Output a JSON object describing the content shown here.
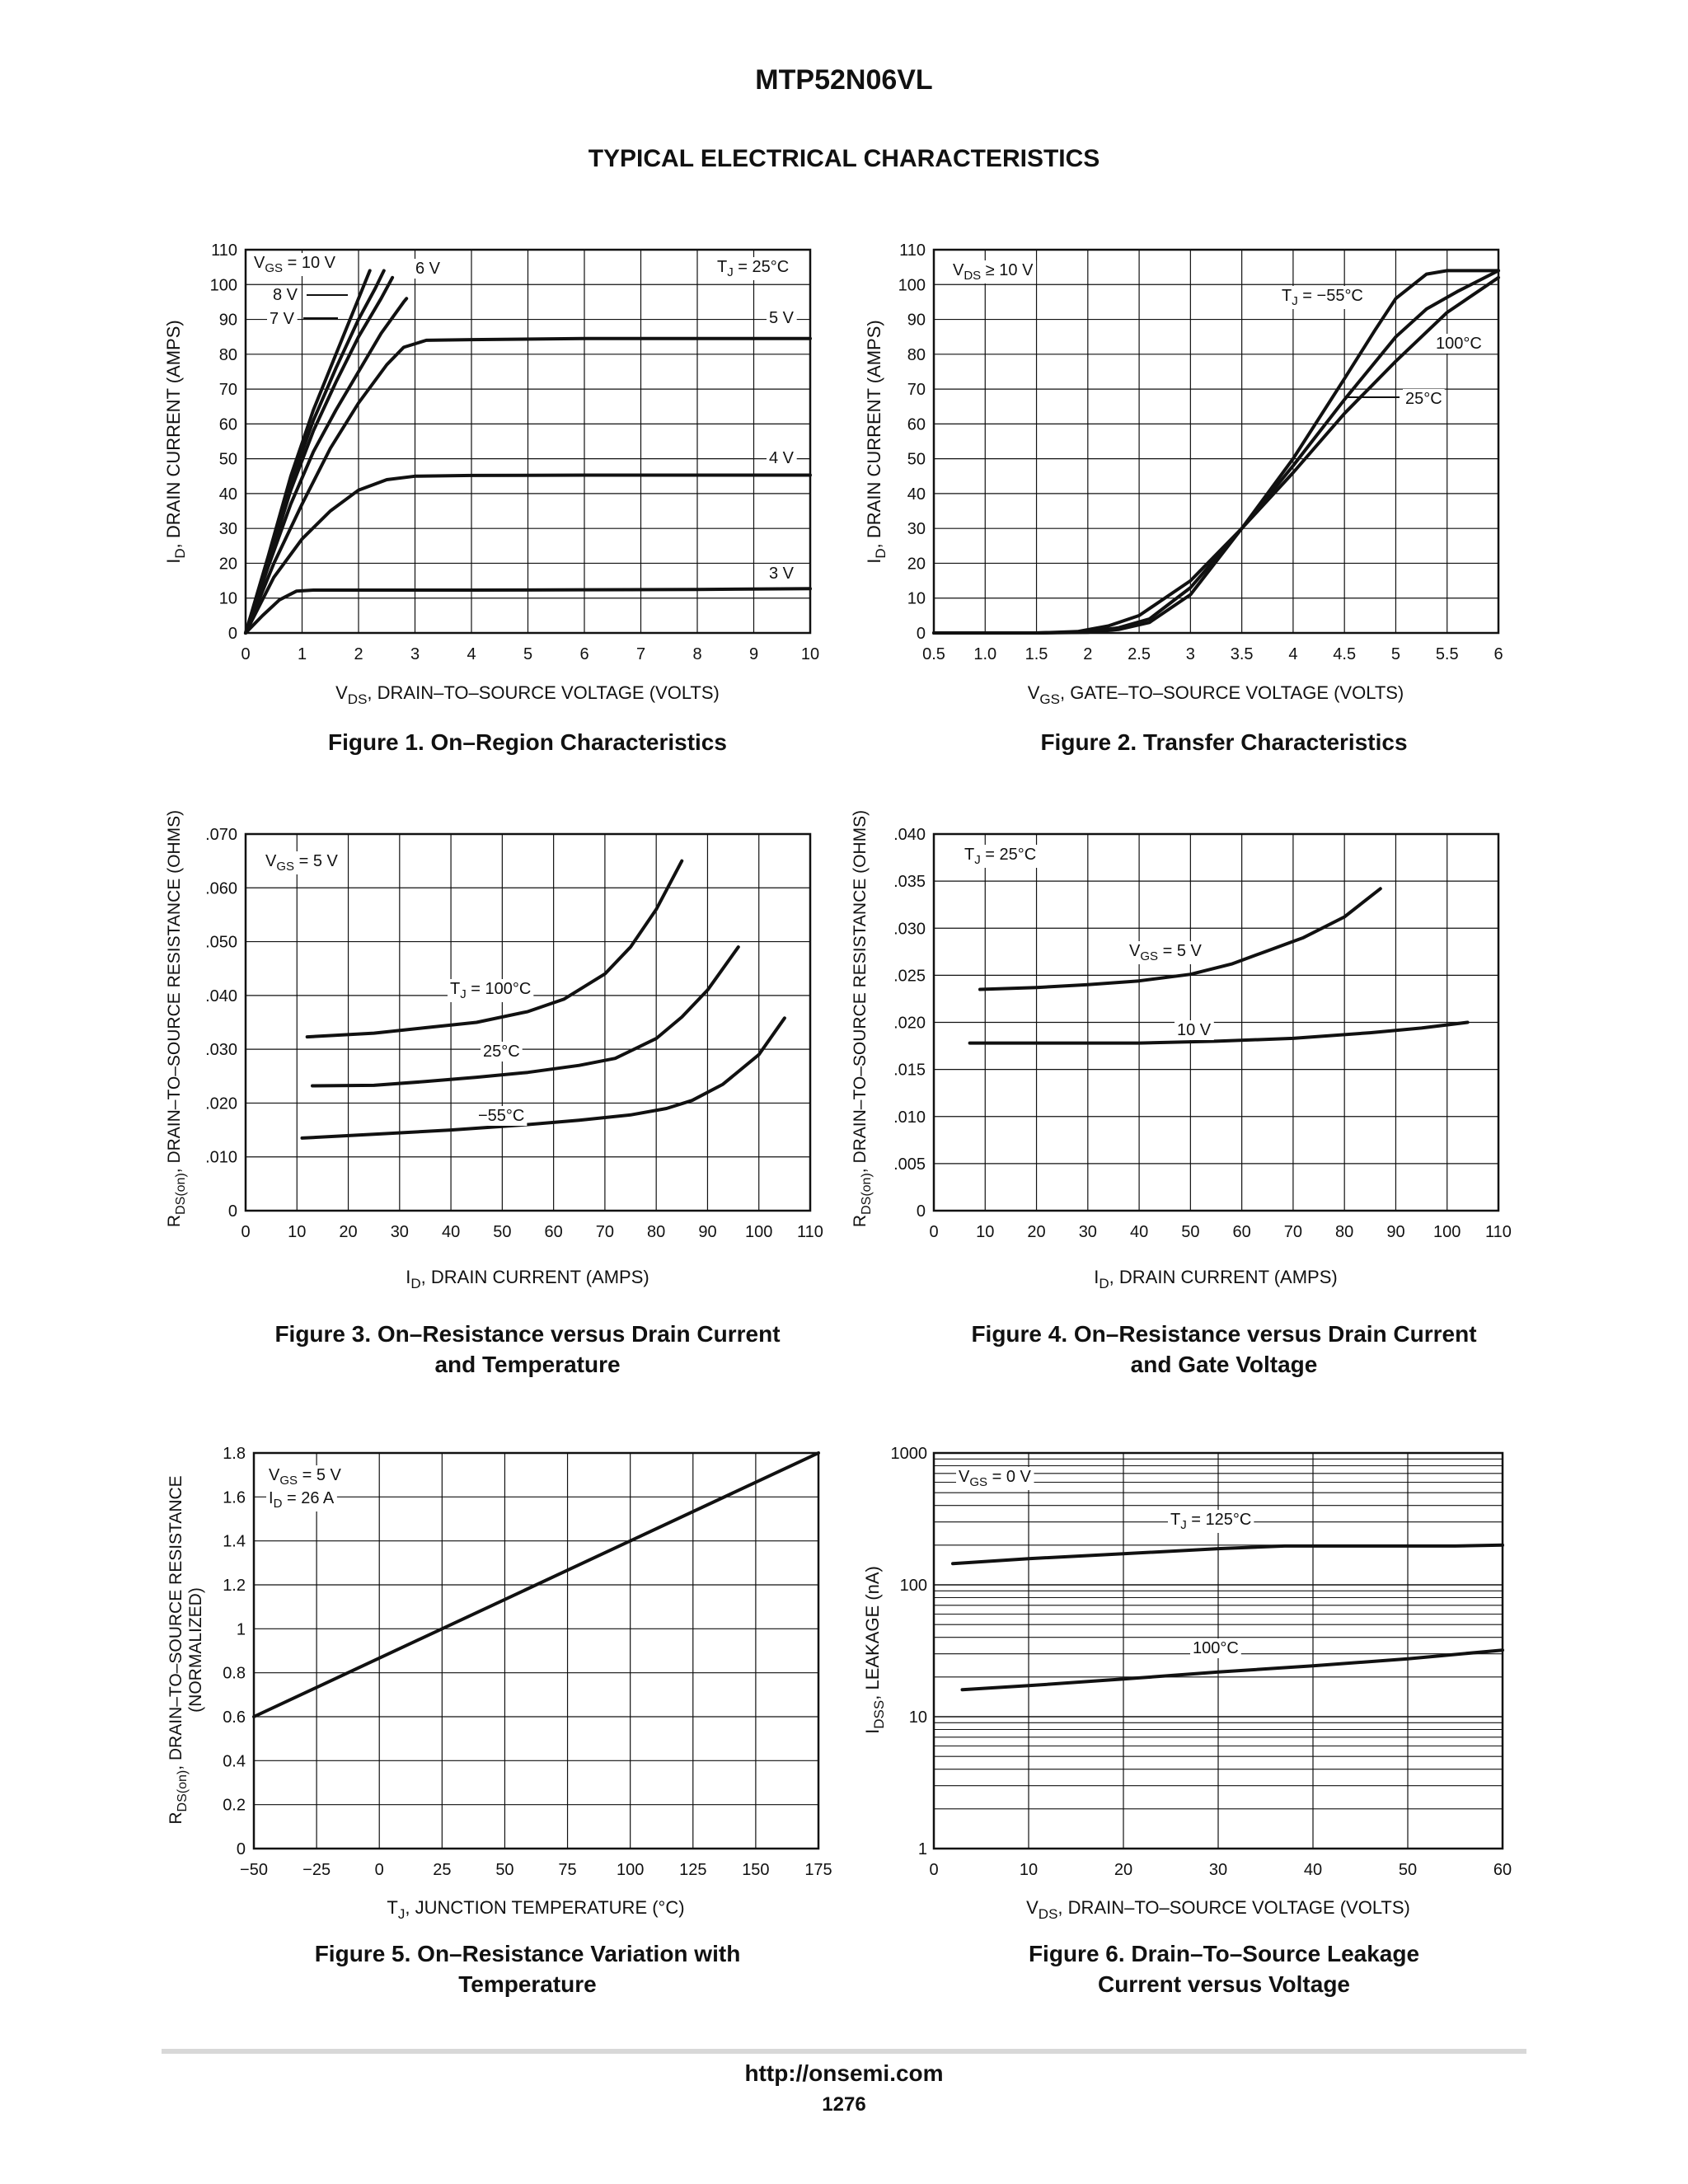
{
  "header": {
    "part_number": "MTP52N06VL",
    "section_title": "TYPICAL ELECTRICAL CHARACTERISTICS"
  },
  "footer": {
    "url": "http://onsemi.com",
    "page": "1276"
  },
  "figures": [
    {
      "line1": "Figure 1. On–Region Characteristics",
      "line2": ""
    },
    {
      "line1": "Figure 2. Transfer Characteristics",
      "line2": ""
    },
    {
      "line1": "Figure 3. On–Resistance versus Drain Current",
      "line2": "and Temperature"
    },
    {
      "line1": "Figure 4. On–Resistance versus Drain Current",
      "line2": "and Gate Voltage"
    },
    {
      "line1": "Figure 5. On–Resistance Variation with",
      "line2": "Temperature"
    },
    {
      "line1": "Figure 6. Drain–To–Source Leakage",
      "line2": "Current versus Voltage"
    }
  ],
  "chart_data": [
    {
      "type": "line",
      "title": "Figure 1. On–Region Characteristics",
      "xlabel": "VDS, DRAIN–TO–SOURCE VOLTAGE (VOLTS)",
      "ylabel": "ID, DRAIN CURRENT (AMPS)",
      "xlim": [
        0,
        10
      ],
      "ylim": [
        0,
        110
      ],
      "xticks": [
        0,
        1,
        2,
        3,
        4,
        5,
        6,
        7,
        8,
        9,
        10
      ],
      "yticks": [
        0,
        10,
        20,
        30,
        40,
        50,
        60,
        70,
        80,
        90,
        100,
        110
      ],
      "grid": true,
      "annotations": [
        "VGS = 10 V",
        "8 V",
        "7 V",
        "6 V",
        "5 V",
        "4 V",
        "3 V",
        "TJ = 25°C"
      ],
      "series": [
        {
          "name": "10 V",
          "x": [
            0,
            0.4,
            0.8,
            1.2,
            1.6,
            2.0,
            2.2
          ],
          "y": [
            0,
            22,
            45,
            64,
            80,
            96,
            104
          ]
        },
        {
          "name": "8 V",
          "x": [
            0,
            0.4,
            0.8,
            1.2,
            1.6,
            2.0,
            2.3,
            2.45
          ],
          "y": [
            0,
            21,
            43,
            61,
            76,
            90,
            99,
            104
          ]
        },
        {
          "name": "7 V",
          "x": [
            0,
            0.4,
            0.8,
            1.2,
            1.6,
            2.0,
            2.4,
            2.6
          ],
          "y": [
            0,
            20,
            41,
            58,
            72,
            85,
            96,
            102
          ]
        },
        {
          "name": "6 V",
          "x": [
            0,
            0.4,
            0.8,
            1.2,
            1.6,
            2.0,
            2.4,
            2.8,
            2.85
          ],
          "y": [
            0,
            19,
            37,
            52,
            64,
            75,
            86,
            95,
            96
          ]
        },
        {
          "name": "5 V",
          "x": [
            0,
            0.5,
            1.0,
            1.5,
            2.0,
            2.5,
            2.8,
            3.2,
            4,
            6,
            8,
            10
          ],
          "y": [
            0,
            20,
            37,
            53,
            66,
            77,
            82,
            84,
            84.2,
            84.5,
            84.5,
            84.5
          ]
        },
        {
          "name": "4 V",
          "x": [
            0,
            0.5,
            1.0,
            1.5,
            2.0,
            2.5,
            3.0,
            4,
            6,
            8,
            10
          ],
          "y": [
            0,
            16,
            27,
            35,
            41,
            44,
            45,
            45.2,
            45.3,
            45.3,
            45.3
          ]
        },
        {
          "name": "3 V",
          "x": [
            0,
            0.3,
            0.6,
            0.9,
            1.2,
            2,
            4,
            6,
            8,
            10
          ],
          "y": [
            0,
            5,
            9.5,
            12,
            12.3,
            12.3,
            12.3,
            12.4,
            12.5,
            12.7
          ]
        }
      ]
    },
    {
      "type": "line",
      "title": "Figure 2. Transfer Characteristics",
      "xlabel": "VGS, GATE–TO–SOURCE VOLTAGE (VOLTS)",
      "ylabel": "ID, DRAIN CURRENT (AMPS)",
      "xlim": [
        0.5,
        6
      ],
      "ylim": [
        0,
        110
      ],
      "xticks": [
        "0.5",
        "1.0",
        "1.5",
        "2",
        "2.5",
        "3",
        "3.5",
        "4",
        "4.5",
        "5",
        "5.5",
        "6"
      ],
      "yticks": [
        0,
        10,
        20,
        30,
        40,
        50,
        60,
        70,
        80,
        90,
        100,
        110
      ],
      "grid": true,
      "annotations": [
        "VDS ≥ 10 V",
        "TJ = −55°C",
        "100°C",
        "25°C"
      ],
      "series": [
        {
          "name": "TJ = −55°C",
          "x": [
            0.5,
            1.5,
            2.0,
            2.3,
            2.6,
            3.0,
            3.5,
            4.0,
            4.5,
            4.8,
            5.0,
            5.3,
            5.5,
            6.0
          ],
          "y": [
            0,
            0,
            0.2,
            1.0,
            3,
            11,
            30,
            50,
            73,
            87,
            96,
            103,
            104,
            104
          ]
        },
        {
          "name": "25°C",
          "x": [
            0.5,
            1.5,
            2.0,
            2.3,
            2.6,
            3.0,
            3.5,
            4.0,
            4.5,
            5.0,
            5.3,
            5.6,
            6.0
          ],
          "y": [
            0,
            0,
            0.3,
            1.5,
            4,
            13,
            30,
            48,
            67,
            85,
            93,
            98,
            104
          ]
        },
        {
          "name": "100°C",
          "x": [
            0.5,
            1.5,
            1.9,
            2.2,
            2.5,
            3.0,
            3.5,
            4.0,
            4.5,
            5.0,
            5.5,
            6.0
          ],
          "y": [
            0,
            0,
            0.4,
            2.0,
            5,
            15,
            30,
            46,
            63,
            78,
            92,
            102
          ]
        }
      ]
    },
    {
      "type": "line",
      "title": "Figure 3. On–Resistance versus Drain Current and Temperature",
      "xlabel": "ID, DRAIN CURRENT (AMPS)",
      "ylabel": "RDS(on), DRAIN–TO–SOURCE RESISTANCE (OHMS)",
      "xlim": [
        0,
        110
      ],
      "ylim": [
        0,
        0.07
      ],
      "xticks": [
        0,
        10,
        20,
        30,
        40,
        50,
        60,
        70,
        80,
        90,
        100,
        110
      ],
      "yticks": [
        "0",
        ".010",
        ".020",
        ".030",
        ".040",
        ".050",
        ".060",
        ".070"
      ],
      "grid": true,
      "annotations": [
        "VGS = 5 V",
        "TJ = 100°C",
        "25°C",
        "−55°C"
      ],
      "series": [
        {
          "name": "TJ = 100°C",
          "x": [
            12,
            25,
            35,
            45,
            55,
            62,
            70,
            75,
            80,
            85
          ],
          "y": [
            0.0323,
            0.033,
            0.034,
            0.035,
            0.037,
            0.0393,
            0.044,
            0.049,
            0.056,
            0.065
          ]
        },
        {
          "name": "25°C",
          "x": [
            13,
            25,
            35,
            45,
            55,
            65,
            72,
            80,
            85,
            90,
            96
          ],
          "y": [
            0.0232,
            0.0233,
            0.024,
            0.0248,
            0.0257,
            0.027,
            0.0283,
            0.032,
            0.036,
            0.041,
            0.049
          ]
        },
        {
          "name": "−55°C",
          "x": [
            11,
            25,
            40,
            55,
            65,
            75,
            82,
            87,
            93,
            100,
            105
          ],
          "y": [
            0.0135,
            0.0142,
            0.015,
            0.016,
            0.0168,
            0.0178,
            0.019,
            0.0205,
            0.0235,
            0.029,
            0.0358
          ]
        }
      ]
    },
    {
      "type": "line",
      "title": "Figure 4. On–Resistance versus Drain Current and Gate Voltage",
      "xlabel": "ID, DRAIN CURRENT (AMPS)",
      "ylabel": "RDS(on), DRAIN–TO–SOURCE RESISTANCE (OHMS)",
      "xlim": [
        0,
        110
      ],
      "ylim": [
        0,
        0.04
      ],
      "xticks": [
        0,
        10,
        20,
        30,
        40,
        50,
        60,
        70,
        80,
        90,
        100,
        110
      ],
      "yticks": [
        "0",
        ".005",
        ".010",
        ".015",
        ".020",
        ".025",
        ".030",
        ".035",
        ".040"
      ],
      "grid": true,
      "annotations": [
        "TJ = 25°C",
        "VGS = 5 V",
        "10 V"
      ],
      "series": [
        {
          "name": "VGS = 5 V",
          "x": [
            9,
            20,
            30,
            40,
            50,
            58,
            65,
            72,
            80,
            87
          ],
          "y": [
            0.0235,
            0.0237,
            0.024,
            0.0244,
            0.0251,
            0.0262,
            0.0276,
            0.029,
            0.0312,
            0.0342
          ]
        },
        {
          "name": "10 V",
          "x": [
            7,
            20,
            40,
            55,
            70,
            85,
            95,
            104
          ],
          "y": [
            0.0178,
            0.0178,
            0.0178,
            0.018,
            0.0183,
            0.0189,
            0.0194,
            0.02
          ]
        }
      ]
    },
    {
      "type": "line",
      "title": "Figure 5. On–Resistance Variation with Temperature",
      "xlabel": "TJ, JUNCTION TEMPERATURE (°C)",
      "ylabel": "RDS(on), DRAIN–TO–SOURCE RESISTANCE (NORMALIZED)",
      "xlim": [
        -50,
        175
      ],
      "ylim": [
        0,
        1.8
      ],
      "xticks": [
        "−50",
        "−25",
        "0",
        "25",
        "50",
        "75",
        "100",
        "125",
        "150",
        "175"
      ],
      "yticks": [
        "0",
        "0.2",
        "0.4",
        "0.6",
        "0.8",
        "1",
        "1.2",
        "1.4",
        "1.6",
        "1.8"
      ],
      "grid": true,
      "annotations": [
        "VGS = 5 V",
        "ID = 26 A"
      ],
      "series": [
        {
          "name": "",
          "x": [
            -50,
            175
          ],
          "y": [
            0.6,
            1.8
          ]
        }
      ]
    },
    {
      "type": "line",
      "title": "Figure 6. Drain–To–Source Leakage Current versus Voltage",
      "xlabel": "VDS, DRAIN–TO–SOURCE VOLTAGE (VOLTS)",
      "ylabel": "IDSS, LEAKAGE (nA)",
      "xlim": [
        0,
        60
      ],
      "ylim": [
        1,
        1000
      ],
      "yscale": "log",
      "xticks": [
        0,
        10,
        20,
        30,
        40,
        50,
        60
      ],
      "yticks": [
        1,
        10,
        100,
        1000
      ],
      "grid": true,
      "annotations": [
        "VGS = 0 V",
        "TJ = 125°C",
        "100°C"
      ],
      "series": [
        {
          "name": "TJ = 125°C",
          "x": [
            2,
            10,
            20,
            30,
            37,
            45,
            55,
            60
          ],
          "y": [
            145,
            158,
            172,
            188,
            197,
            197,
            197,
            200
          ]
        },
        {
          "name": "100°C",
          "x": [
            3,
            10,
            20,
            30,
            40,
            50,
            60
          ],
          "y": [
            16,
            17.2,
            19.3,
            21.8,
            24.3,
            27.5,
            32
          ]
        }
      ]
    }
  ]
}
